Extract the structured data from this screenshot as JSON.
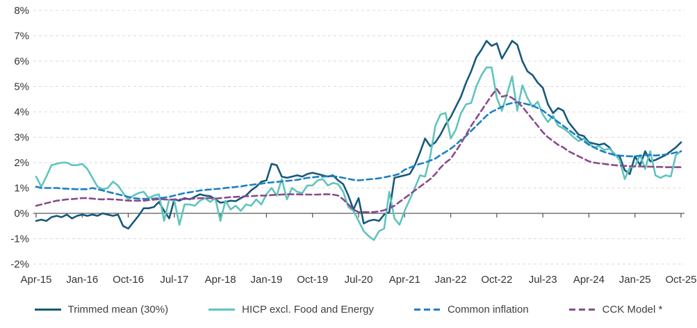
{
  "chart_data": {
    "type": "line",
    "title": "",
    "unit": "%",
    "y_axis": {
      "min": -2,
      "max": 8,
      "step": 1,
      "tick_labels": [
        "8%",
        "7%",
        "6%",
        "5%",
        "4%",
        "3%",
        "2%",
        "1%",
        "0%",
        "-1%",
        "-2%"
      ]
    },
    "x_axis": {
      "start_month": "Apr-2015",
      "end_month": "Oct-2025",
      "months_total": 127,
      "tick_every_months": 9,
      "tick_labels": [
        "Apr-15",
        "Jan-16",
        "Oct-16",
        "Jul-17",
        "Apr-18",
        "Jan-19",
        "Oct-19",
        "Jul-20",
        "Apr-21",
        "Jan-22",
        "Oct-22",
        "Jul-23",
        "Apr-24",
        "Jan-25",
        "Oct-25"
      ]
    },
    "grid": {
      "line_color": "#d9d9d9",
      "line_style": "dashed",
      "zero_line_color": "#595959"
    },
    "axis_text_color": "#333333",
    "legend_position": "bottom",
    "series": [
      {
        "name": "Trimmed mean (30%)",
        "color": "#17587b",
        "style": "solid",
        "values": [
          -0.3,
          -0.25,
          -0.3,
          -0.15,
          -0.1,
          -0.15,
          -0.05,
          -0.2,
          -0.1,
          -0.05,
          -0.1,
          -0.05,
          -0.1,
          0,
          -0.05,
          -0.1,
          -0.05,
          -0.5,
          -0.6,
          -0.35,
          -0.1,
          0.2,
          0.2,
          0.25,
          0.45,
          0.1,
          -0.2,
          0.55,
          0.5,
          0.6,
          0.55,
          0.65,
          0.75,
          0.7,
          0.68,
          0.55,
          0.42,
          0.45,
          0.5,
          0.48,
          0.6,
          0.7,
          0.9,
          1.05,
          1.25,
          1.3,
          1.95,
          1.9,
          1.45,
          1.4,
          1.45,
          1.5,
          1.45,
          1.55,
          1.6,
          1.55,
          1.5,
          1.45,
          1.5,
          1.3,
          1.15,
          0.7,
          0.15,
          0.6,
          -0.4,
          -0.3,
          -0.25,
          -0.3,
          -0.05,
          0.05,
          1.4,
          1.45,
          1.5,
          1.55,
          1.9,
          2.4,
          2.95,
          2.65,
          2.8,
          3.1,
          3.5,
          3.8,
          4.2,
          4.6,
          5.15,
          5.6,
          6.15,
          6.45,
          6.8,
          6.6,
          6.7,
          6.1,
          6.45,
          6.8,
          6.65,
          6.0,
          5.6,
          5.45,
          5.15,
          4.95,
          4.3,
          3.95,
          4.15,
          4.05,
          3.6,
          3.35,
          3.1,
          3.05,
          2.8,
          2.75,
          2.7,
          2.75,
          2.6,
          2.3,
          2.25,
          1.7,
          1.55,
          2.25,
          1.9,
          2.45,
          2.05,
          2.1,
          2.2,
          2.3,
          2.45,
          2.6,
          2.8
        ]
      },
      {
        "name": "HICP excl. Food and Energy",
        "color": "#5fc4bd",
        "style": "solid",
        "values": [
          1.45,
          1.05,
          1.45,
          1.9,
          1.95,
          2.0,
          2.0,
          1.9,
          1.9,
          1.95,
          1.75,
          1.4,
          1.05,
          0.95,
          1.0,
          1.25,
          1.1,
          0.8,
          0.55,
          0.7,
          0.8,
          0.85,
          0.6,
          0.7,
          0.75,
          -0.3,
          0.55,
          0.5,
          -0.45,
          0.35,
          0.35,
          0.3,
          0.5,
          0.6,
          0.45,
          0.6,
          -0.3,
          0.5,
          0.15,
          0.3,
          0.1,
          0.35,
          0.3,
          0.55,
          0.35,
          0.75,
          1.0,
          0.7,
          1.35,
          0.55,
          1.0,
          0.85,
          0.8,
          1.1,
          1.1,
          1.3,
          1.35,
          1.1,
          1.2,
          1.15,
          0.85,
          0.25,
          0.1,
          -0.3,
          -0.7,
          -0.9,
          -1.05,
          -0.7,
          -0.6,
          0.85,
          -0.2,
          -0.45,
          0.1,
          0.55,
          1.0,
          1.5,
          1.45,
          2.25,
          3.45,
          3.9,
          3.95,
          2.95,
          3.3,
          3.95,
          4.3,
          4.35,
          5.0,
          5.45,
          5.75,
          5.75,
          4.55,
          4.05,
          4.7,
          5.4,
          4.05,
          5.05,
          4.55,
          4.2,
          4.4,
          3.9,
          3.6,
          3.85,
          3.45,
          3.35,
          3.2,
          3.0,
          2.85,
          2.95,
          2.75,
          2.6,
          2.65,
          2.5,
          2.55,
          2.35,
          2.1,
          1.35,
          1.8,
          1.85,
          2.3,
          1.75,
          2.45,
          1.5,
          1.4,
          1.5,
          1.45,
          2.3,
          2.45
        ]
      },
      {
        "name": "Common inflation",
        "color": "#1d7fc4",
        "style": "dashed",
        "values": [
          1.05,
          1.0,
          1.0,
          1.0,
          1.0,
          0.98,
          0.97,
          0.96,
          0.95,
          0.95,
          0.95,
          1.0,
          0.95,
          0.9,
          0.85,
          0.8,
          0.75,
          0.7,
          0.65,
          0.6,
          0.58,
          0.57,
          0.57,
          0.58,
          0.6,
          0.62,
          0.65,
          0.7,
          0.75,
          0.8,
          0.83,
          0.86,
          0.9,
          0.92,
          0.94,
          0.96,
          0.97,
          1.0,
          1.02,
          1.04,
          1.06,
          1.1,
          1.12,
          1.15,
          1.17,
          1.2,
          1.22,
          1.24,
          1.26,
          1.28,
          1.3,
          1.32,
          1.36,
          1.4,
          1.42,
          1.44,
          1.45,
          1.46,
          1.46,
          1.44,
          1.4,
          1.36,
          1.32,
          1.3,
          1.32,
          1.34,
          1.36,
          1.38,
          1.42,
          1.46,
          1.5,
          1.56,
          1.72,
          1.8,
          1.88,
          1.95,
          2.0,
          2.08,
          2.16,
          2.3,
          2.42,
          2.55,
          2.7,
          2.9,
          3.05,
          3.25,
          3.45,
          3.65,
          3.85,
          4.0,
          4.1,
          4.2,
          4.3,
          4.35,
          4.38,
          4.35,
          4.3,
          4.25,
          4.15,
          4.05,
          3.9,
          3.75,
          3.6,
          3.45,
          3.3,
          3.15,
          3.0,
          2.85,
          2.7,
          2.6,
          2.5,
          2.42,
          2.36,
          2.3,
          2.28,
          2.26,
          2.25,
          2.25,
          2.27,
          2.3,
          2.3,
          2.28,
          2.3,
          2.32,
          2.35,
          2.4,
          2.45
        ]
      },
      {
        "name": "CCK Model *",
        "color": "#8b4a8b",
        "style": "dashed",
        "values": [
          0.3,
          0.35,
          0.4,
          0.45,
          0.5,
          0.52,
          0.55,
          0.56,
          0.58,
          0.6,
          0.6,
          0.58,
          0.56,
          0.55,
          0.56,
          0.55,
          0.54,
          0.52,
          0.5,
          0.5,
          0.5,
          0.5,
          0.52,
          0.54,
          0.56,
          0.55,
          0.54,
          0.55,
          0.55,
          0.56,
          0.57,
          0.58,
          0.6,
          0.6,
          0.6,
          0.58,
          0.6,
          0.62,
          0.64,
          0.65,
          0.66,
          0.67,
          0.68,
          0.69,
          0.7,
          0.7,
          0.72,
          0.73,
          0.74,
          0.75,
          0.75,
          0.75,
          0.74,
          0.74,
          0.74,
          0.74,
          0.75,
          0.75,
          0.74,
          0.7,
          0.55,
          0.35,
          0.15,
          0.05,
          0.05,
          0.05,
          0.05,
          0.08,
          0.12,
          0.2,
          0.3,
          0.45,
          0.6,
          0.75,
          0.9,
          1.05,
          1.2,
          1.35,
          1.55,
          1.8,
          2.0,
          2.15,
          2.45,
          2.75,
          3.1,
          3.45,
          3.75,
          4.05,
          4.35,
          4.65,
          4.9,
          4.6,
          4.65,
          4.55,
          4.4,
          4.2,
          3.95,
          3.7,
          3.45,
          3.2,
          3.0,
          2.85,
          2.7,
          2.6,
          2.45,
          2.35,
          2.25,
          2.15,
          2.05,
          2.0,
          1.97,
          1.95,
          1.92,
          1.9,
          1.88,
          1.87,
          1.86,
          1.85,
          1.85,
          1.84,
          1.84,
          1.83,
          1.83,
          1.82,
          1.82,
          1.82,
          1.82
        ]
      }
    ]
  }
}
